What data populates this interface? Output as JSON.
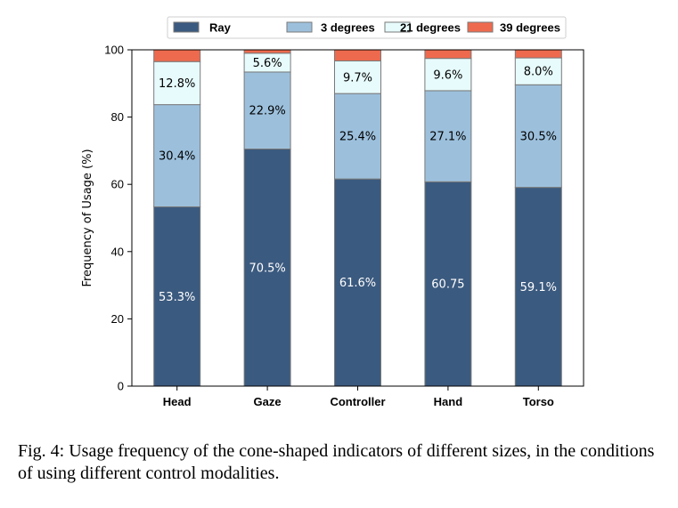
{
  "chart_data": {
    "type": "bar",
    "stacked": true,
    "categories": [
      "Head",
      "Gaze",
      "Controller",
      "Hand",
      "Torso"
    ],
    "series": [
      {
        "name": "Ray",
        "color": "#3b5a7f",
        "values": [
          53.3,
          70.5,
          61.6,
          60.75,
          59.1
        ],
        "labels": [
          "53.3%",
          "70.5%",
          "61.6%",
          "60.75",
          "59.1%"
        ]
      },
      {
        "name": "3 degrees",
        "color": "#9cc0dc",
        "values": [
          30.4,
          22.9,
          25.4,
          27.1,
          30.5
        ],
        "labels": [
          "30.4%",
          "22.9%",
          "25.4%",
          "27.1%",
          "30.5%"
        ]
      },
      {
        "name": "21 degrees",
        "color": "#e7fbfc",
        "values": [
          12.8,
          5.6,
          9.7,
          9.6,
          8.0
        ],
        "labels": [
          "12.8%",
          "5.6%",
          "9.7%",
          "9.6%",
          "8.0%"
        ]
      },
      {
        "name": "39 degrees",
        "color": "#ee6a4e",
        "values": [
          3.5,
          1.0,
          3.3,
          2.55,
          2.4
        ],
        "labels": [
          "",
          "",
          "",
          "",
          ""
        ]
      }
    ],
    "label_colors": [
      "#ffffff",
      "#000000",
      "#000000",
      "#000000"
    ],
    "ylabel": "Frequency of Usage (%)",
    "xlabel": "",
    "ylim": [
      0,
      100
    ],
    "yticks": [
      0,
      20,
      40,
      60,
      80,
      100
    ],
    "grid": false,
    "legend_position": "top"
  },
  "caption": "Fig. 4: Usage frequency of the cone-shaped indicators of different sizes, in the conditions of using different control modalities."
}
